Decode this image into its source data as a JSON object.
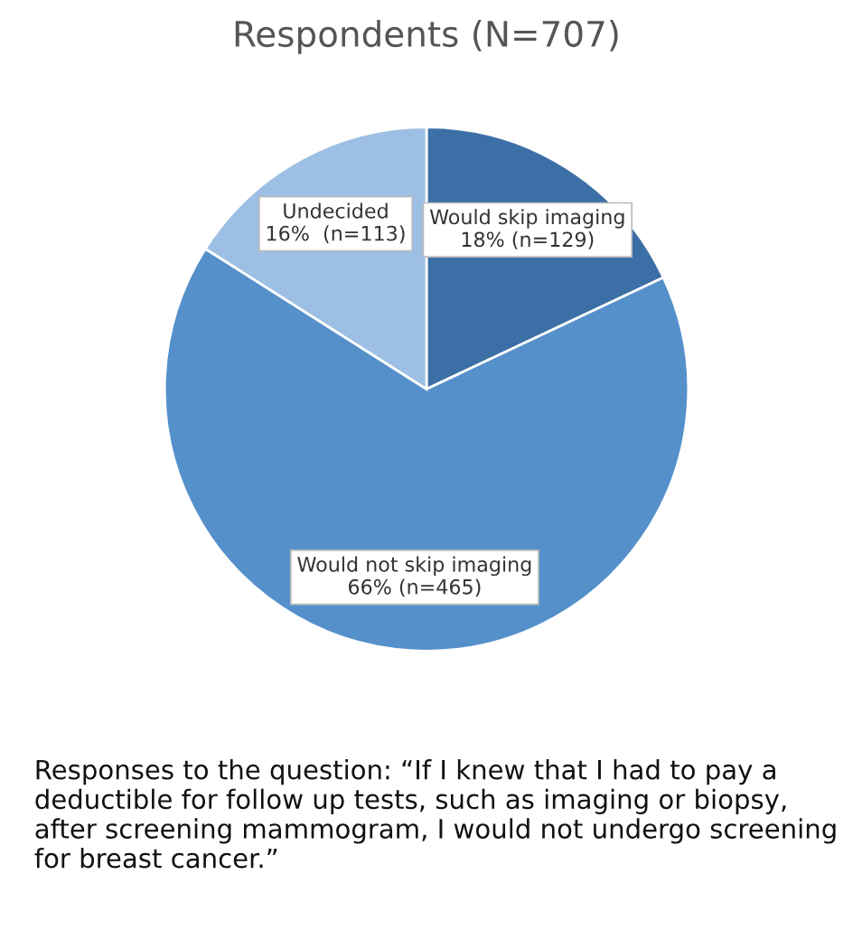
{
  "chart_data": {
    "type": "pie",
    "title": "Respondents (N=707)",
    "categories": [
      "Would skip imaging",
      "Would not skip imaging",
      "Undecided"
    ],
    "values": [
      18,
      66,
      16
    ],
    "value_labels": [
      "18% (n=129)",
      "66% (n=465)",
      "16%  (n=113)"
    ],
    "colors": [
      "#3b6fa6",
      "#5590cb",
      "#9dbfe3"
    ],
    "annotations": [
      "Responses to the question: “If I knew that I had to pay a deductible for follow up tests, such as imaging or biopsy, after screening mammogram, I would not undergo screening for breast cancer.”"
    ]
  }
}
